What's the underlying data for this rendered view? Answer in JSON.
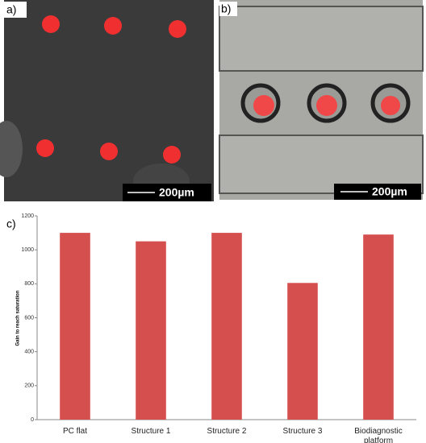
{
  "panels": {
    "a": {
      "label": "a)",
      "scale": "200µm"
    },
    "b": {
      "label": "b)",
      "scale": "200µm"
    },
    "c": {
      "label": "c)"
    }
  },
  "chart_data": {
    "type": "bar",
    "y_label": "Gain to reach saturation",
    "categories": [
      "PC flat",
      "Structure 1",
      "Structure 2",
      "Structure 3",
      "Biodiagnostic platform"
    ],
    "values": [
      1100,
      1050,
      1100,
      805,
      1090
    ],
    "color": "#d54f4f",
    "ylim": [
      0,
      1200
    ],
    "yticks": [
      0,
      200,
      400,
      600,
      800,
      1000,
      1200
    ],
    "grid": false
  }
}
